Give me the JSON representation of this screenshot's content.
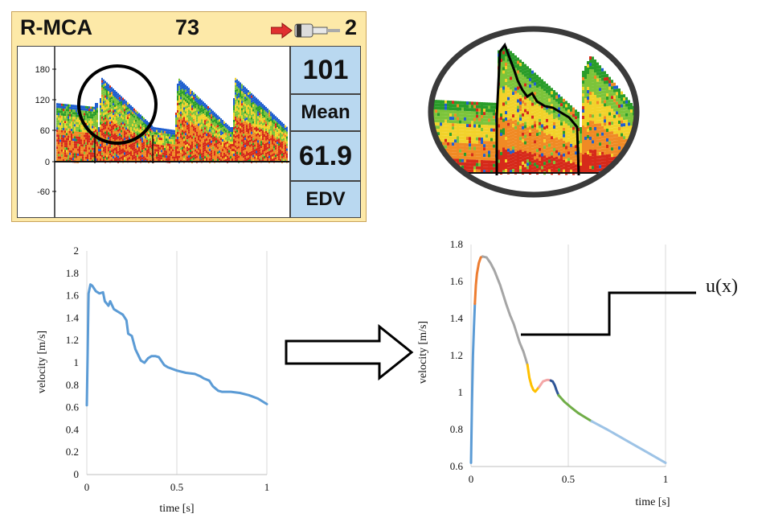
{
  "monitor": {
    "title": "R-MCA",
    "count": "73",
    "probe": "2",
    "ticks": [
      "180",
      "120",
      "60",
      "0",
      "-60"
    ],
    "readouts": [
      {
        "value": "101"
      },
      {
        "value": "Mean"
      },
      {
        "value": "61.9"
      },
      {
        "value": "EDV"
      }
    ]
  },
  "annotation": {
    "label": "u(x)"
  },
  "chart_data": [
    {
      "type": "line",
      "xlabel": "time [s]",
      "ylabel": "velocity [m/s]",
      "xlim": [
        0,
        1
      ],
      "ylim": [
        0,
        2
      ],
      "xticks": [
        "0",
        "0.5",
        "1"
      ],
      "yticks": [
        "0",
        "0.2",
        "0.4",
        "0.6",
        "0.8",
        "1",
        "1.2",
        "1.4",
        "1.6",
        "1.8",
        "2"
      ],
      "grid": "vertical",
      "series": [
        {
          "color": "#5b9bd5",
          "x": [
            0,
            0.01,
            0.02,
            0.03,
            0.05,
            0.07,
            0.09,
            0.1,
            0.12,
            0.13,
            0.15,
            0.17,
            0.2,
            0.22,
            0.23,
            0.25,
            0.27,
            0.3,
            0.32,
            0.34,
            0.36,
            0.38,
            0.4,
            0.43,
            0.45,
            0.5,
            0.55,
            0.6,
            0.63,
            0.65,
            0.68,
            0.7,
            0.73,
            0.75,
            0.8,
            0.85,
            0.9,
            0.95,
            1.0
          ],
          "y": [
            0.62,
            1.62,
            1.7,
            1.69,
            1.64,
            1.62,
            1.63,
            1.55,
            1.51,
            1.55,
            1.48,
            1.46,
            1.43,
            1.38,
            1.26,
            1.24,
            1.12,
            1.02,
            1.0,
            1.04,
            1.06,
            1.06,
            1.05,
            0.98,
            0.96,
            0.93,
            0.91,
            0.9,
            0.88,
            0.86,
            0.84,
            0.79,
            0.75,
            0.74,
            0.74,
            0.73,
            0.71,
            0.68,
            0.63
          ]
        }
      ]
    },
    {
      "type": "line",
      "xlabel": "time [s]",
      "ylabel": "velocity [m/s]",
      "xlim": [
        0,
        1
      ],
      "ylim": [
        0.6,
        1.8
      ],
      "xticks": [
        "0",
        "0.5",
        "1"
      ],
      "yticks": [
        "0.6",
        "0.8",
        "1",
        "1.2",
        "1.4",
        "1.6",
        "1.8"
      ],
      "grid": "vertical",
      "series": [
        {
          "color": "#5b9bd5",
          "x": [
            0,
            0.005,
            0.01,
            0.015,
            0.02
          ],
          "y": [
            0.62,
            0.95,
            1.2,
            1.35,
            1.48
          ]
        },
        {
          "color": "#ed7d31",
          "x": [
            0.02,
            0.025,
            0.03,
            0.04,
            0.05,
            0.06
          ],
          "y": [
            1.48,
            1.58,
            1.64,
            1.7,
            1.73,
            1.735
          ]
        },
        {
          "color": "#a5a5a5",
          "x": [
            0.06,
            0.08,
            0.1,
            0.12,
            0.15,
            0.18,
            0.2,
            0.22,
            0.25,
            0.27,
            0.29
          ],
          "y": [
            1.735,
            1.73,
            1.7,
            1.66,
            1.58,
            1.48,
            1.42,
            1.37,
            1.27,
            1.22,
            1.15
          ]
        },
        {
          "color": "#ffc000",
          "x": [
            0.29,
            0.3,
            0.31,
            0.32,
            0.33,
            0.35
          ],
          "y": [
            1.15,
            1.08,
            1.04,
            1.015,
            1.005,
            1.03
          ]
        },
        {
          "color": "#f4a6a6",
          "x": [
            0.35,
            0.37,
            0.39,
            0.4,
            0.41
          ],
          "y": [
            1.03,
            1.06,
            1.068,
            1.068,
            1.065
          ]
        },
        {
          "color": "#2e5597",
          "x": [
            0.41,
            0.42,
            0.43,
            0.44,
            0.45
          ],
          "y": [
            1.065,
            1.06,
            1.04,
            1.01,
            0.985
          ]
        },
        {
          "color": "#70ad47",
          "x": [
            0.45,
            0.48,
            0.52,
            0.55,
            0.58,
            0.62
          ],
          "y": [
            0.985,
            0.95,
            0.915,
            0.89,
            0.87,
            0.845
          ]
        },
        {
          "color": "#9dc3e6",
          "x": [
            0.62,
            0.7,
            0.8,
            0.9,
            1.0
          ],
          "y": [
            0.845,
            0.8,
            0.74,
            0.68,
            0.62
          ]
        }
      ]
    }
  ]
}
